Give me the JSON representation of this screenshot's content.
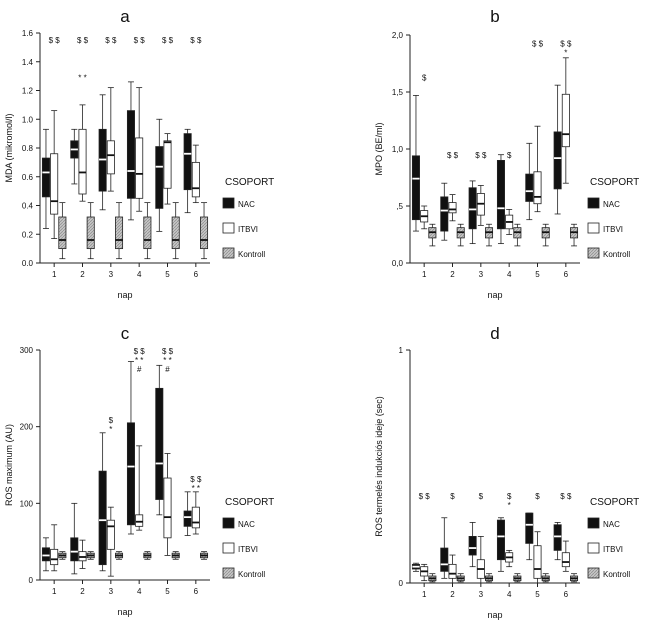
{
  "figure": {
    "legend_title": "CSOPORT",
    "legend_entries": [
      "NAC",
      "ITBVI",
      "Kontroll"
    ]
  },
  "colors": {
    "NAC": "#111111",
    "ITBVI": "#ffffff",
    "Kontroll": "#c6c6c6",
    "stroke": "#222222"
  },
  "chart_data": [
    {
      "panel": "a",
      "type": "boxplot",
      "ylabel": "MDA (mikromol/l)",
      "xlabel": "nap",
      "ylim": [
        0,
        1.6
      ],
      "yticks": [
        "0.0",
        "0.2",
        "0.4",
        "0.6",
        "0.8",
        "1.0",
        "1.2",
        "1.4",
        "1.6"
      ],
      "ytick_values": [
        0,
        0.2,
        0.4,
        0.6,
        0.8,
        1.0,
        1.2,
        1.4,
        1.6
      ],
      "categories": [
        "1",
        "2",
        "3",
        "4",
        "5",
        "6"
      ],
      "series": [
        {
          "name": "NAC",
          "boxes": [
            {
              "min": 0.24,
              "q1": 0.46,
              "median": 0.63,
              "q3": 0.73,
              "max": 0.93
            },
            {
              "min": 0.55,
              "q1": 0.73,
              "median": 0.79,
              "q3": 0.85,
              "max": 0.93
            },
            {
              "min": 0.37,
              "q1": 0.5,
              "median": 0.72,
              "q3": 0.93,
              "max": 1.17
            },
            {
              "min": 0.3,
              "q1": 0.45,
              "median": 0.64,
              "q3": 1.06,
              "max": 1.26
            },
            {
              "min": 0.22,
              "q1": 0.38,
              "median": 0.67,
              "q3": 0.81,
              "max": 1.0
            },
            {
              "min": 0.35,
              "q1": 0.51,
              "median": 0.76,
              "q3": 0.9,
              "max": 0.93
            }
          ]
        },
        {
          "name": "ITBVI",
          "boxes": [
            {
              "min": 0.17,
              "q1": 0.34,
              "median": 0.43,
              "q3": 0.76,
              "max": 1.06
            },
            {
              "min": 0.43,
              "q1": 0.48,
              "median": 0.63,
              "q3": 0.93,
              "max": 1.1
            },
            {
              "min": 0.5,
              "q1": 0.62,
              "median": 0.75,
              "q3": 0.85,
              "max": 1.22
            },
            {
              "min": 0.36,
              "q1": 0.45,
              "median": 0.62,
              "q3": 0.87,
              "max": 1.22
            },
            {
              "min": 0.41,
              "q1": 0.52,
              "median": 0.84,
              "q3": 0.85,
              "max": 0.9
            },
            {
              "min": 0.42,
              "q1": 0.46,
              "median": 0.52,
              "q3": 0.7,
              "max": 0.82
            }
          ]
        },
        {
          "name": "Kontroll",
          "boxes": [
            {
              "min": 0.03,
              "q1": 0.1,
              "median": 0.16,
              "q3": 0.32,
              "max": 0.42
            },
            {
              "min": 0.03,
              "q1": 0.1,
              "median": 0.16,
              "q3": 0.32,
              "max": 0.42
            },
            {
              "min": 0.03,
              "q1": 0.1,
              "median": 0.16,
              "q3": 0.32,
              "max": 0.42
            },
            {
              "min": 0.03,
              "q1": 0.1,
              "median": 0.16,
              "q3": 0.32,
              "max": 0.42
            },
            {
              "min": 0.03,
              "q1": 0.1,
              "median": 0.16,
              "q3": 0.32,
              "max": 0.42
            },
            {
              "min": 0.03,
              "q1": 0.1,
              "median": 0.16,
              "q3": 0.32,
              "max": 0.42
            }
          ]
        }
      ],
      "annotations": [
        {
          "category": "1",
          "lines": [
            "$ $"
          ],
          "y": 1.53
        },
        {
          "category": "2",
          "lines": [
            "$ $"
          ],
          "y": 1.53
        },
        {
          "category": "2",
          "lines": [
            "* *"
          ],
          "y": 1.27
        },
        {
          "category": "3",
          "lines": [
            "$ $"
          ],
          "y": 1.53
        },
        {
          "category": "4",
          "lines": [
            "$ $"
          ],
          "y": 1.53
        },
        {
          "category": "5",
          "lines": [
            "$ $"
          ],
          "y": 1.53
        },
        {
          "category": "6",
          "lines": [
            "$ $"
          ],
          "y": 1.53
        }
      ]
    },
    {
      "panel": "b",
      "type": "boxplot",
      "ylabel": "MPO (BE/ml)",
      "xlabel": "nap",
      "ylim": [
        0,
        2.0
      ],
      "yticks": [
        "0,0",
        ",5",
        "1,0",
        "1,5",
        "2,0"
      ],
      "ytick_values": [
        0,
        0.5,
        1.0,
        1.5,
        2.0
      ],
      "categories": [
        "1",
        "2",
        "3",
        "4",
        "5",
        "6"
      ],
      "series": [
        {
          "name": "NAC",
          "boxes": [
            {
              "min": 0.28,
              "q1": 0.38,
              "median": 0.74,
              "q3": 0.94,
              "max": 1.47
            },
            {
              "min": 0.2,
              "q1": 0.28,
              "median": 0.46,
              "q3": 0.58,
              "max": 0.7
            },
            {
              "min": 0.17,
              "q1": 0.3,
              "median": 0.47,
              "q3": 0.66,
              "max": 0.72
            },
            {
              "min": 0.17,
              "q1": 0.3,
              "median": 0.48,
              "q3": 0.9,
              "max": 0.95
            },
            {
              "min": 0.38,
              "q1": 0.54,
              "median": 0.63,
              "q3": 0.78,
              "max": 1.05
            },
            {
              "min": 0.43,
              "q1": 0.65,
              "median": 0.92,
              "q3": 1.15,
              "max": 1.56
            }
          ]
        },
        {
          "name": "ITBVI",
          "boxes": [
            {
              "min": 0.3,
              "q1": 0.36,
              "median": 0.41,
              "q3": 0.46,
              "max": 0.5
            },
            {
              "min": 0.37,
              "q1": 0.44,
              "median": 0.47,
              "q3": 0.53,
              "max": 0.6
            },
            {
              "min": 0.33,
              "q1": 0.42,
              "median": 0.52,
              "q3": 0.61,
              "max": 0.68
            },
            {
              "min": 0.25,
              "q1": 0.3,
              "median": 0.36,
              "q3": 0.42,
              "max": 0.47
            },
            {
              "min": 0.45,
              "q1": 0.52,
              "median": 0.58,
              "q3": 0.8,
              "max": 1.2
            },
            {
              "min": 0.7,
              "q1": 1.02,
              "median": 1.13,
              "q3": 1.48,
              "max": 1.8
            }
          ]
        },
        {
          "name": "Kontroll",
          "boxes": [
            {
              "min": 0.15,
              "q1": 0.22,
              "median": 0.27,
              "q3": 0.31,
              "max": 0.34
            },
            {
              "min": 0.15,
              "q1": 0.22,
              "median": 0.27,
              "q3": 0.31,
              "max": 0.34
            },
            {
              "min": 0.15,
              "q1": 0.22,
              "median": 0.27,
              "q3": 0.31,
              "max": 0.34
            },
            {
              "min": 0.15,
              "q1": 0.22,
              "median": 0.27,
              "q3": 0.31,
              "max": 0.34
            },
            {
              "min": 0.15,
              "q1": 0.22,
              "median": 0.27,
              "q3": 0.31,
              "max": 0.34
            },
            {
              "min": 0.15,
              "q1": 0.22,
              "median": 0.27,
              "q3": 0.31,
              "max": 0.34
            }
          ]
        }
      ],
      "annotations": [
        {
          "category": "1",
          "lines": [
            "$"
          ],
          "y": 1.6
        },
        {
          "category": "2",
          "lines": [
            "$ $"
          ],
          "y": 0.92
        },
        {
          "category": "3",
          "lines": [
            "$ $"
          ],
          "y": 0.92
        },
        {
          "category": "4",
          "lines": [
            "$"
          ],
          "y": 0.92
        },
        {
          "category": "5",
          "lines": [
            "$ $"
          ],
          "y": 1.9
        },
        {
          "category": "6",
          "lines": [
            "$ $",
            "*"
          ],
          "y": 1.9
        }
      ]
    },
    {
      "panel": "c",
      "type": "boxplot",
      "ylabel": "ROS maximum (AU)",
      "xlabel": "nap",
      "ylim": [
        0,
        300
      ],
      "yticks": [
        "0",
        "100",
        "200",
        "300"
      ],
      "ytick_values": [
        0,
        100,
        200,
        300
      ],
      "categories": [
        "1",
        "2",
        "3",
        "4",
        "5",
        "6"
      ],
      "series": [
        {
          "name": "NAC",
          "boxes": [
            {
              "min": 12,
              "q1": 25,
              "median": 32,
              "q3": 42,
              "max": 55
            },
            {
              "min": 8,
              "q1": 25,
              "median": 37,
              "q3": 55,
              "max": 100
            },
            {
              "min": 12,
              "q1": 20,
              "median": 78,
              "q3": 142,
              "max": 192
            },
            {
              "min": 60,
              "q1": 72,
              "median": 148,
              "q3": 205,
              "max": 285
            },
            {
              "min": 85,
              "q1": 105,
              "median": 152,
              "q3": 250,
              "max": 280
            },
            {
              "min": 58,
              "q1": 70,
              "median": 82,
              "q3": 90,
              "max": 115
            }
          ]
        },
        {
          "name": "ITBVI",
          "boxes": [
            {
              "min": 12,
              "q1": 20,
              "median": 27,
              "q3": 40,
              "max": 72
            },
            {
              "min": 15,
              "q1": 25,
              "median": 30,
              "q3": 37,
              "max": 52
            },
            {
              "min": 5,
              "q1": 40,
              "median": 70,
              "q3": 78,
              "max": 95
            },
            {
              "min": 65,
              "q1": 70,
              "median": 76,
              "q3": 85,
              "max": 175
            },
            {
              "min": 32,
              "q1": 55,
              "median": 82,
              "q3": 133,
              "max": 165
            },
            {
              "min": 60,
              "q1": 68,
              "median": 75,
              "q3": 95,
              "max": 115
            }
          ]
        },
        {
          "name": "Kontroll",
          "boxes": [
            {
              "min": 27,
              "q1": 29,
              "median": 32,
              "q3": 35,
              "max": 37
            },
            {
              "min": 27,
              "q1": 29,
              "median": 32,
              "q3": 35,
              "max": 37
            },
            {
              "min": 27,
              "q1": 29,
              "median": 32,
              "q3": 35,
              "max": 37
            },
            {
              "min": 27,
              "q1": 29,
              "median": 32,
              "q3": 35,
              "max": 37
            },
            {
              "min": 27,
              "q1": 29,
              "median": 32,
              "q3": 35,
              "max": 37
            },
            {
              "min": 27,
              "q1": 29,
              "median": 32,
              "q3": 35,
              "max": 37
            }
          ]
        }
      ],
      "annotations": [
        {
          "category": "3",
          "lines": [
            "$",
            "*"
          ],
          "y": 205
        },
        {
          "category": "4",
          "lines": [
            "$ $",
            "* *",
            "#"
          ],
          "y": 295
        },
        {
          "category": "5",
          "lines": [
            "$ $",
            "* *",
            "#"
          ],
          "y": 295
        },
        {
          "category": "6",
          "lines": [
            "$ $",
            "* *"
          ],
          "y": 128
        }
      ]
    },
    {
      "panel": "d",
      "type": "boxplot",
      "ylabel": "ROS termelés indukciós ideje (sec)",
      "xlabel": "nap",
      "ylim": [
        0,
        1
      ],
      "yticks": [
        "0",
        "1"
      ],
      "ytick_values": [
        0,
        1
      ],
      "categories": [
        "1",
        "2",
        "3",
        "4",
        "5",
        "6"
      ],
      "series": [
        {
          "name": "NAC",
          "boxes": [
            {
              "min": 0.05,
              "q1": 0.06,
              "median": 0.07,
              "q3": 0.08,
              "max": 0.085
            },
            {
              "min": 0.02,
              "q1": 0.05,
              "median": 0.08,
              "q3": 0.15,
              "max": 0.28
            },
            {
              "min": 0.07,
              "q1": 0.12,
              "median": 0.15,
              "q3": 0.2,
              "max": 0.26
            },
            {
              "min": 0.05,
              "q1": 0.1,
              "median": 0.2,
              "q3": 0.27,
              "max": 0.28
            },
            {
              "min": 0.1,
              "q1": 0.17,
              "median": 0.25,
              "q3": 0.3,
              "max": 0.3
            },
            {
              "min": 0.1,
              "q1": 0.14,
              "median": 0.2,
              "q3": 0.25,
              "max": 0.26
            }
          ]
        },
        {
          "name": "ITBVI",
          "boxes": [
            {
              "min": 0.01,
              "q1": 0.03,
              "median": 0.05,
              "q3": 0.07,
              "max": 0.08
            },
            {
              "min": 0.0,
              "q1": 0.02,
              "median": 0.04,
              "q3": 0.08,
              "max": 0.12
            },
            {
              "min": 0.0,
              "q1": 0.02,
              "median": 0.06,
              "q3": 0.1,
              "max": 0.2
            },
            {
              "min": 0.07,
              "q1": 0.09,
              "median": 0.11,
              "q3": 0.13,
              "max": 0.14
            },
            {
              "min": 0.0,
              "q1": 0.02,
              "median": 0.06,
              "q3": 0.16,
              "max": 0.22
            },
            {
              "min": 0.05,
              "q1": 0.07,
              "median": 0.09,
              "q3": 0.13,
              "max": 0.18
            }
          ]
        },
        {
          "name": "Kontroll",
          "boxes": [
            {
              "min": 0.005,
              "q1": 0.01,
              "median": 0.02,
              "q3": 0.03,
              "max": 0.04
            },
            {
              "min": 0.005,
              "q1": 0.01,
              "median": 0.02,
              "q3": 0.03,
              "max": 0.04
            },
            {
              "min": 0.005,
              "q1": 0.01,
              "median": 0.02,
              "q3": 0.03,
              "max": 0.04
            },
            {
              "min": 0.005,
              "q1": 0.01,
              "median": 0.02,
              "q3": 0.03,
              "max": 0.04
            },
            {
              "min": 0.005,
              "q1": 0.01,
              "median": 0.02,
              "q3": 0.03,
              "max": 0.04
            },
            {
              "min": 0.005,
              "q1": 0.01,
              "median": 0.02,
              "q3": 0.03,
              "max": 0.04
            }
          ]
        }
      ],
      "annotations": [
        {
          "category": "1",
          "lines": [
            "$ $"
          ],
          "y": 0.36
        },
        {
          "category": "2",
          "lines": [
            "$"
          ],
          "y": 0.36
        },
        {
          "category": "3",
          "lines": [
            "$"
          ],
          "y": 0.36
        },
        {
          "category": "4",
          "lines": [
            "$",
            "*"
          ],
          "y": 0.36
        },
        {
          "category": "5",
          "lines": [
            "$"
          ],
          "y": 0.36
        },
        {
          "category": "6",
          "lines": [
            "$ $"
          ],
          "y": 0.36
        }
      ]
    }
  ]
}
